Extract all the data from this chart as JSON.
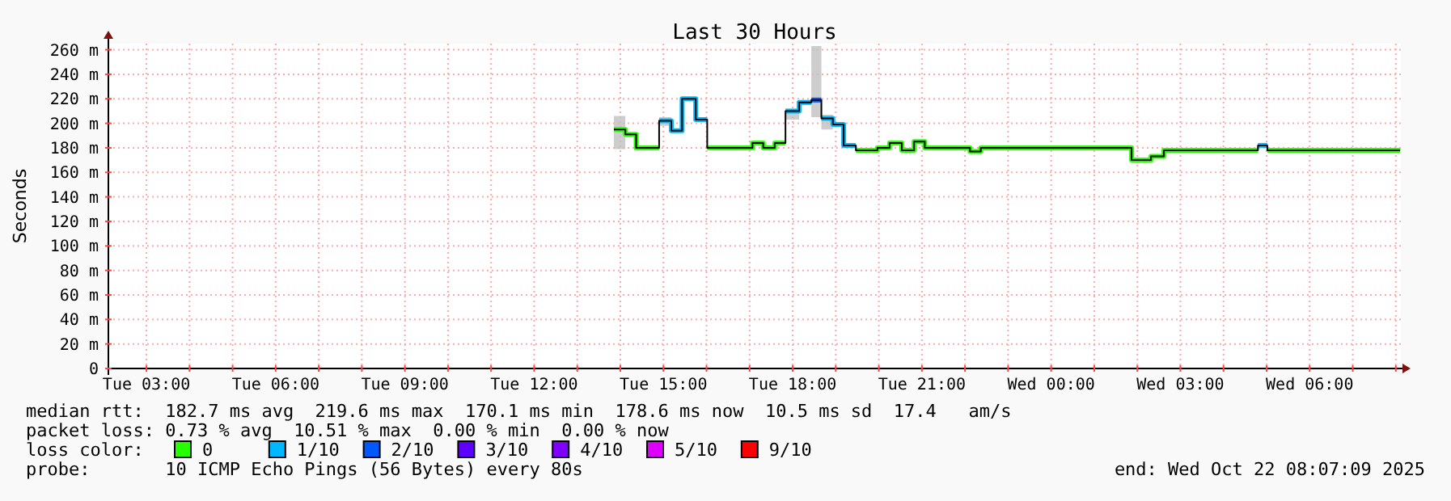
{
  "chart_data": {
    "type": "step",
    "title": "Last 30 Hours",
    "ylabel": "Seconds",
    "legend_title": "loss color:",
    "legend": "bottom",
    "grid": true,
    "xlim": [
      "2025-10-21T02:07",
      "2025-10-22T08:07"
    ],
    "xticks": [
      {
        "value": "2025-10-21T03:00",
        "label": "Tue 03:00"
      },
      {
        "value": "2025-10-21T04:00",
        "label": null
      },
      {
        "value": "2025-10-21T05:00",
        "label": null
      },
      {
        "value": "2025-10-21T06:00",
        "label": "Tue 06:00"
      },
      {
        "value": "2025-10-21T07:00",
        "label": null
      },
      {
        "value": "2025-10-21T08:00",
        "label": null
      },
      {
        "value": "2025-10-21T09:00",
        "label": "Tue 09:00"
      },
      {
        "value": "2025-10-21T10:00",
        "label": null
      },
      {
        "value": "2025-10-21T11:00",
        "label": null
      },
      {
        "value": "2025-10-21T12:00",
        "label": "Tue 12:00"
      },
      {
        "value": "2025-10-21T13:00",
        "label": null
      },
      {
        "value": "2025-10-21T14:00",
        "label": null
      },
      {
        "value": "2025-10-21T15:00",
        "label": "Tue 15:00"
      },
      {
        "value": "2025-10-21T16:00",
        "label": null
      },
      {
        "value": "2025-10-21T17:00",
        "label": null
      },
      {
        "value": "2025-10-21T18:00",
        "label": "Tue 18:00"
      },
      {
        "value": "2025-10-21T19:00",
        "label": null
      },
      {
        "value": "2025-10-21T20:00",
        "label": null
      },
      {
        "value": "2025-10-21T21:00",
        "label": "Tue 21:00"
      },
      {
        "value": "2025-10-21T22:00",
        "label": null
      },
      {
        "value": "2025-10-21T23:00",
        "label": null
      },
      {
        "value": "2025-10-22T00:00",
        "label": "Wed 00:00"
      },
      {
        "value": "2025-10-22T01:00",
        "label": null
      },
      {
        "value": "2025-10-22T02:00",
        "label": null
      },
      {
        "value": "2025-10-22T03:00",
        "label": "Wed 03:00"
      },
      {
        "value": "2025-10-22T04:00",
        "label": null
      },
      {
        "value": "2025-10-22T05:00",
        "label": null
      },
      {
        "value": "2025-10-22T06:00",
        "label": "Wed 06:00"
      },
      {
        "value": "2025-10-22T07:00",
        "label": null
      },
      {
        "value": "2025-10-22T08:00",
        "label": null
      }
    ],
    "ylim": [
      0,
      265
    ],
    "yticks": [
      0,
      {
        "value": 20,
        "label": "20 m"
      },
      {
        "value": 40,
        "label": "40 m"
      },
      {
        "value": 60,
        "label": "60 m"
      },
      {
        "value": 80,
        "label": "80 m"
      },
      {
        "value": 100,
        "label": "100 m"
      },
      {
        "value": 120,
        "label": "120 m"
      },
      {
        "value": 140,
        "label": "140 m"
      },
      {
        "value": 160,
        "label": "160 m"
      },
      {
        "value": 180,
        "label": "180 m"
      },
      {
        "value": 200,
        "label": "200 m"
      },
      {
        "value": 220,
        "label": "220 m"
      },
      {
        "value": 240,
        "label": "240 m"
      },
      {
        "value": 260,
        "label": "260 m"
      }
    ],
    "series": [
      {
        "name": "0",
        "color": "#26ff00",
        "x": [
          "2025-10-21T13:51",
          "2025-10-21T14:07",
          "2025-10-21T14:22",
          "2025-10-21T14:54"
        ],
        "values": [
          195,
          191,
          180,
          180
        ]
      },
      {
        "color": "#26ff00",
        "x": [
          "2025-10-21T16:01",
          "2025-10-21T17:04",
          "2025-10-21T17:19",
          "2025-10-21T17:35",
          "2025-10-21T17:50"
        ],
        "values": [
          180,
          184,
          180,
          184,
          184
        ]
      },
      {
        "color": "#26ff00",
        "x": [
          "2025-10-21T19:28",
          "2025-10-21T19:58",
          "2025-10-21T20:15",
          "2025-10-21T20:32",
          "2025-10-21T20:49",
          "2025-10-21T21:04",
          "2025-10-21T22:07",
          "2025-10-21T22:22",
          "2025-10-22T01:52",
          "2025-10-22T02:19",
          "2025-10-22T02:37",
          "2025-10-22T04:48"
        ],
        "values": [
          178,
          180,
          184,
          178,
          185,
          180,
          177,
          180,
          170,
          173,
          178,
          178
        ]
      },
      {
        "color": "#26ff00",
        "x": [
          "2025-10-22T05:01",
          "2025-10-22T08:06"
        ],
        "values": [
          178,
          178
        ]
      },
      {
        "name": "1/10",
        "color": "#00b8ff",
        "x": [
          "2025-10-21T14:54",
          "2025-10-21T15:11",
          "2025-10-21T15:26",
          "2025-10-21T15:45",
          "2025-10-21T16:01"
        ],
        "values": [
          202,
          194,
          220,
          203,
          203
        ]
      },
      {
        "color": "#00b8ff",
        "x": [
          "2025-10-21T17:50",
          "2025-10-21T18:09",
          "2025-10-21T18:26"
        ],
        "values": [
          210,
          217,
          217
        ]
      },
      {
        "color": "#00b8ff",
        "x": [
          "2025-10-21T18:40",
          "2025-10-21T18:56",
          "2025-10-21T19:11",
          "2025-10-21T19:28"
        ],
        "values": [
          204,
          199,
          182,
          182
        ]
      },
      {
        "color": "#00b8ff",
        "x": [
          "2025-10-22T04:48",
          "2025-10-22T05:01"
        ],
        "values": [
          182,
          182
        ]
      },
      {
        "name": "2/10",
        "color": "#0059ff",
        "x": [
          "2025-10-21T18:26",
          "2025-10-21T18:40"
        ],
        "values": [
          219,
          219
        ]
      },
      {
        "name": "3/10",
        "color": "#5e00ff"
      },
      {
        "name": "4/10",
        "color": "#7e00ff"
      },
      {
        "name": "5/10",
        "color": "#dd00ff"
      },
      {
        "name": "9/10",
        "color": "#ff0000"
      },
      {
        "color": "#000000",
        "x": [
          "2025-10-21T13:51",
          "2025-10-21T14:07",
          "2025-10-21T14:22",
          "2025-10-21T14:54",
          "2025-10-21T15:11",
          "2025-10-21T15:26",
          "2025-10-21T15:45",
          "2025-10-21T16:01",
          "2025-10-21T17:04",
          "2025-10-21T17:19",
          "2025-10-21T17:35",
          "2025-10-21T17:50",
          "2025-10-21T18:09",
          "2025-10-21T18:26",
          "2025-10-21T18:40",
          "2025-10-21T18:56",
          "2025-10-21T19:11",
          "2025-10-21T19:28",
          "2025-10-21T19:58",
          "2025-10-21T20:15",
          "2025-10-21T20:32",
          "2025-10-21T20:49",
          "2025-10-21T21:04",
          "2025-10-21T22:07",
          "2025-10-21T22:22",
          "2025-10-22T01:52",
          "2025-10-22T02:19",
          "2025-10-22T02:37",
          "2025-10-22T04:48",
          "2025-10-22T05:01",
          "2025-10-22T08:06"
        ],
        "values": [
          195,
          191,
          180,
          202,
          194,
          220,
          203,
          180,
          184,
          180,
          184,
          210,
          217,
          219,
          204,
          199,
          182,
          178,
          180,
          184,
          178,
          185,
          180,
          177,
          180,
          170,
          173,
          178,
          182,
          178,
          178
        ],
        "lower": [
          179,
          186,
          null,
          198,
          189,
          null,
          null,
          null,
          null,
          null,
          null,
          203,
          215,
          205,
          195,
          194,
          null,
          null,
          null,
          null,
          null,
          null,
          null,
          null,
          null,
          null,
          null,
          null,
          null,
          null,
          null
        ],
        "upper": [
          206,
          194,
          null,
          205,
          197,
          null,
          null,
          null,
          null,
          null,
          null,
          212,
          219,
          263,
          207,
          207,
          null,
          null,
          null,
          null,
          null,
          null,
          null,
          null,
          null,
          null,
          null,
          null,
          null,
          null,
          null
        ]
      }
    ],
    "annotations": [
      "median rtt:  182.7 ms avg  219.6 ms max  170.1 ms min  178.6 ms now  10.5 ms sd  17.4   am/s",
      "packet loss: 0.73 % avg  10.51 % max  0.00 % min  0.00 % now",
      "probe:       10 ICMP Echo Pings (56 Bytes) every 80s",
      "end: Wed Oct 22 08:07:09 2025"
    ]
  }
}
